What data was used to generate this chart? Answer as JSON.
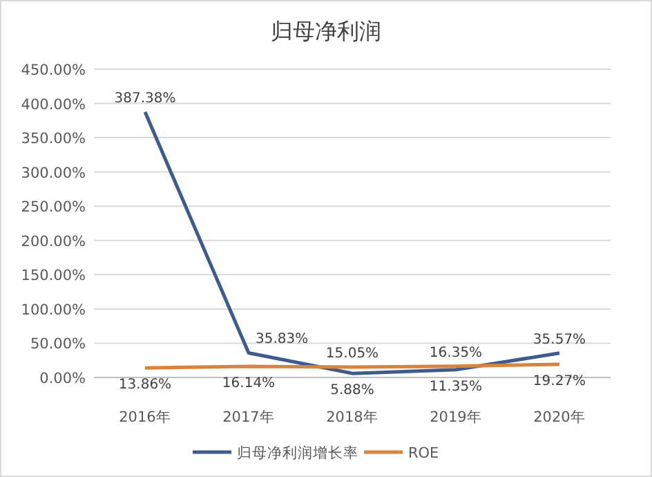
{
  "chart_data": {
    "type": "line",
    "title": "归母净利润",
    "categories": [
      "2016年",
      "2017年",
      "2018年",
      "2019年",
      "2020年"
    ],
    "series": [
      {
        "name": "归母净利润增长率",
        "color": "#3f5b8c",
        "values": [
          387.38,
          35.83,
          5.88,
          11.35,
          35.57
        ],
        "value_labels": [
          "387.38%",
          "35.83%",
          "5.88%",
          "11.35%",
          "35.57%"
        ]
      },
      {
        "name": "ROE",
        "color": "#d9843c",
        "values": [
          13.86,
          16.14,
          15.05,
          16.35,
          19.27
        ],
        "value_labels": [
          "13.86%",
          "16.14%",
          "15.05%",
          "16.35%",
          "19.27%"
        ]
      }
    ],
    "ylim": [
      0,
      450
    ],
    "yticks": [
      {
        "value": 0,
        "label": "0.00%"
      },
      {
        "value": 50,
        "label": "50.00%"
      },
      {
        "value": 100,
        "label": "100.00%"
      },
      {
        "value": 150,
        "label": "150.00%"
      },
      {
        "value": 200,
        "label": "200.00%"
      },
      {
        "value": 250,
        "label": "250.00%"
      },
      {
        "value": 300,
        "label": "300.00%"
      },
      {
        "value": 350,
        "label": "350.00%"
      },
      {
        "value": 400,
        "label": "400.00%"
      },
      {
        "value": 450,
        "label": "450.00%"
      }
    ],
    "grid": "y",
    "legend": "bottom",
    "marker": "none",
    "line_style": "solid"
  }
}
